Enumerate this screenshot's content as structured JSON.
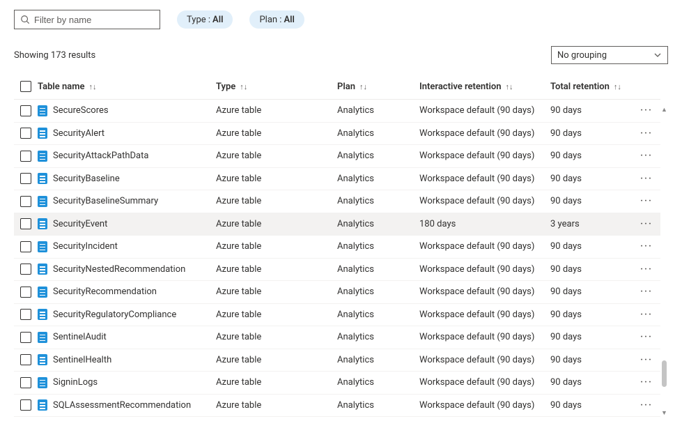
{
  "filter": {
    "placeholder": "Filter by name"
  },
  "pills": {
    "type": {
      "label": "Type : ",
      "value": "All"
    },
    "plan": {
      "label": "Plan : ",
      "value": "All"
    }
  },
  "results": {
    "text": "Showing 173 results"
  },
  "grouping": {
    "selected": "No grouping"
  },
  "columns": {
    "name": "Table name",
    "type": "Type",
    "plan": "Plan",
    "inter": "Interactive retention",
    "total": "Total retention"
  },
  "rows": [
    {
      "name": "SecureScores",
      "type": "Azure table",
      "plan": "Analytics",
      "inter": "Workspace default (90 days)",
      "total": "90 days",
      "hover": false
    },
    {
      "name": "SecurityAlert",
      "type": "Azure table",
      "plan": "Analytics",
      "inter": "Workspace default (90 days)",
      "total": "90 days",
      "hover": false
    },
    {
      "name": "SecurityAttackPathData",
      "type": "Azure table",
      "plan": "Analytics",
      "inter": "Workspace default (90 days)",
      "total": "90 days",
      "hover": false
    },
    {
      "name": "SecurityBaseline",
      "type": "Azure table",
      "plan": "Analytics",
      "inter": "Workspace default (90 days)",
      "total": "90 days",
      "hover": false
    },
    {
      "name": "SecurityBaselineSummary",
      "type": "Azure table",
      "plan": "Analytics",
      "inter": "Workspace default (90 days)",
      "total": "90 days",
      "hover": false
    },
    {
      "name": "SecurityEvent",
      "type": "Azure table",
      "plan": "Analytics",
      "inter": "180 days",
      "total": "3 years",
      "hover": true
    },
    {
      "name": "SecurityIncident",
      "type": "Azure table",
      "plan": "Analytics",
      "inter": "Workspace default (90 days)",
      "total": "90 days",
      "hover": false
    },
    {
      "name": "SecurityNestedRecommendation",
      "type": "Azure table",
      "plan": "Analytics",
      "inter": "Workspace default (90 days)",
      "total": "90 days",
      "hover": false
    },
    {
      "name": "SecurityRecommendation",
      "type": "Azure table",
      "plan": "Analytics",
      "inter": "Workspace default (90 days)",
      "total": "90 days",
      "hover": false
    },
    {
      "name": "SecurityRegulatoryCompliance",
      "type": "Azure table",
      "plan": "Analytics",
      "inter": "Workspace default (90 days)",
      "total": "90 days",
      "hover": false
    },
    {
      "name": "SentinelAudit",
      "type": "Azure table",
      "plan": "Analytics",
      "inter": "Workspace default (90 days)",
      "total": "90 days",
      "hover": false
    },
    {
      "name": "SentinelHealth",
      "type": "Azure table",
      "plan": "Analytics",
      "inter": "Workspace default (90 days)",
      "total": "90 days",
      "hover": false
    },
    {
      "name": "SigninLogs",
      "type": "Azure table",
      "plan": "Analytics",
      "inter": "Workspace default (90 days)",
      "total": "90 days",
      "hover": false
    },
    {
      "name": "SQLAssessmentRecommendation",
      "type": "Azure table",
      "plan": "Analytics",
      "inter": "Workspace default (90 days)",
      "total": "90 days",
      "hover": false
    }
  ],
  "colors": {
    "pill_bg": "#e1effa",
    "icon_blue": "#1f91da",
    "hover_bg": "#f3f2f1",
    "border": "#605e5c"
  }
}
